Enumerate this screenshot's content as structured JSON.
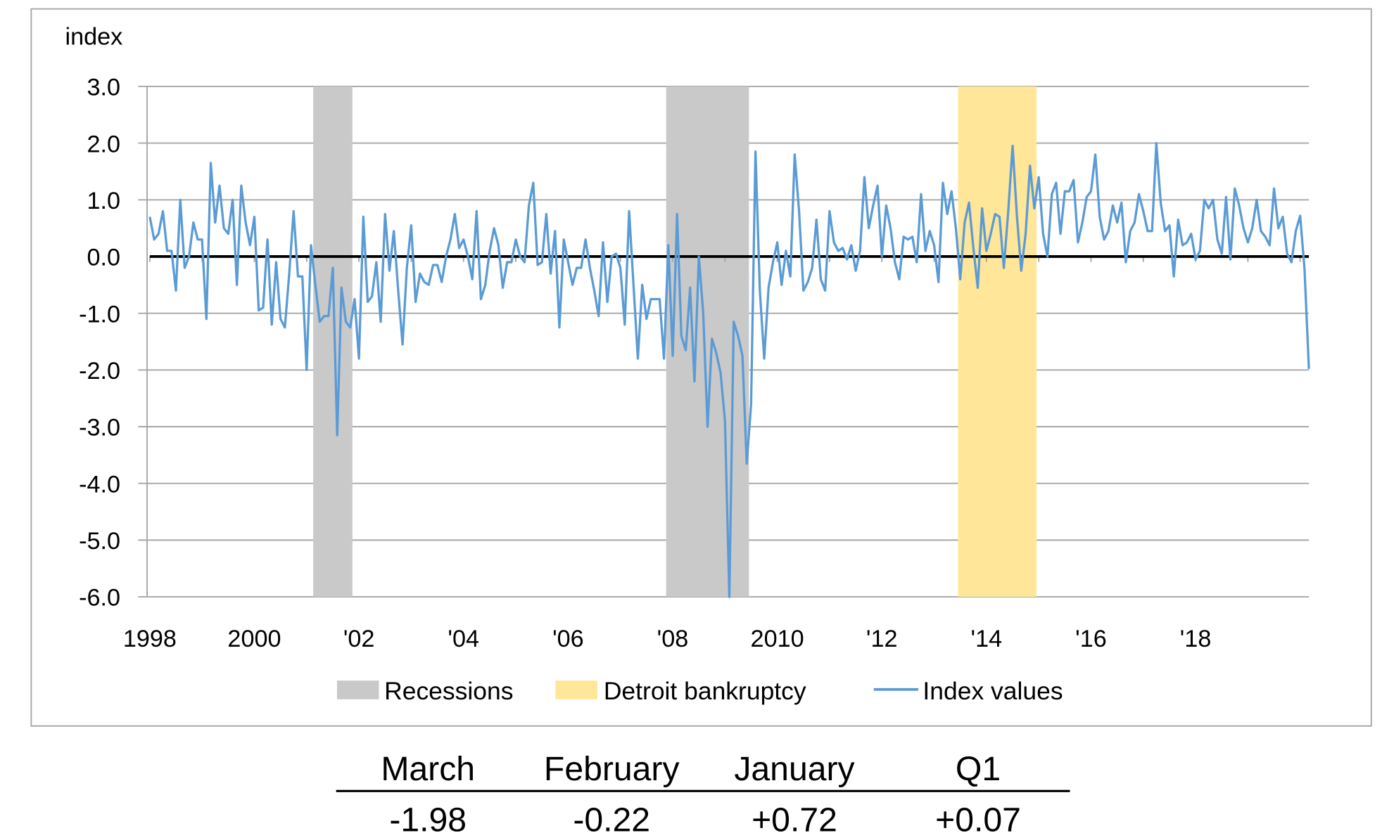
{
  "chart_data": {
    "type": "line",
    "ylabel": "index",
    "ylim": [
      -6.0,
      3.0
    ],
    "yticks": [
      "3.0",
      "2.0",
      "1.0",
      "0.0",
      "-1.0",
      "-2.0",
      "-3.0",
      "-4.0",
      "-5.0",
      "-6.0"
    ],
    "ytick_values": [
      3,
      2,
      1,
      0,
      -1,
      -2,
      -3,
      -4,
      -5,
      -6
    ],
    "xlim": [
      "1998-01",
      "2020-03"
    ],
    "xticks": [
      {
        "label": "1998",
        "year": 1998
      },
      {
        "label": "2000",
        "year": 2000
      },
      {
        "label": "'02",
        "year": 2002
      },
      {
        "label": "'04",
        "year": 2004
      },
      {
        "label": "'06",
        "year": 2006
      },
      {
        "label": "'08",
        "year": 2008
      },
      {
        "label": "2010",
        "year": 2010
      },
      {
        "label": "'12",
        "year": 2012
      },
      {
        "label": "'14",
        "year": 2014
      },
      {
        "label": "'16",
        "year": 2016
      },
      {
        "label": "'18",
        "year": 2018
      }
    ],
    "grid": true,
    "legend_position": "bottom",
    "colors": {
      "recession": "#c9c9c9",
      "bankruptcy": "#ffe699",
      "line": "#5b9bd5",
      "zero_line": "#000000",
      "grid": "#a6a6a6"
    },
    "shaded_periods": [
      {
        "series": "Recessions",
        "start": "2001-03",
        "end": "2001-11"
      },
      {
        "series": "Recessions",
        "start": "2007-12",
        "end": "2009-06"
      },
      {
        "series": "Detroit bankruptcy",
        "start": "2013-07",
        "end": "2014-12"
      }
    ],
    "legend": [
      "Recessions",
      "Detroit bankruptcy",
      "Index values"
    ],
    "series": [
      {
        "name": "Index values",
        "start": "1998-01",
        "frequency": "monthly",
        "values": [
          0.7,
          0.3,
          0.4,
          0.8,
          0.1,
          0.1,
          -0.6,
          1.0,
          -0.2,
          0.0,
          0.6,
          0.3,
          0.3,
          -1.1,
          1.65,
          0.6,
          1.25,
          0.5,
          0.4,
          1.0,
          -0.5,
          1.25,
          0.6,
          0.2,
          0.7,
          -0.95,
          -0.9,
          0.3,
          -1.2,
          -0.1,
          -1.1,
          -1.25,
          -0.3,
          0.8,
          -0.35,
          -0.35,
          -2.0,
          0.2,
          -0.5,
          -1.15,
          -1.05,
          -1.05,
          -0.2,
          -3.15,
          -0.55,
          -1.15,
          -1.25,
          -0.75,
          -1.8,
          0.7,
          -0.8,
          -0.7,
          -0.1,
          -1.15,
          0.75,
          -0.25,
          0.45,
          -0.6,
          -1.55,
          -0.2,
          0.55,
          -0.8,
          -0.3,
          -0.45,
          -0.5,
          -0.15,
          -0.15,
          -0.45,
          0.0,
          0.3,
          0.75,
          0.15,
          0.3,
          0.0,
          -0.4,
          0.8,
          -0.75,
          -0.5,
          0.1,
          0.5,
          0.2,
          -0.55,
          -0.1,
          -0.1,
          0.3,
          0.0,
          -0.1,
          0.9,
          1.3,
          -0.15,
          -0.1,
          0.75,
          -0.3,
          0.45,
          -1.25,
          0.3,
          -0.1,
          -0.5,
          -0.2,
          -0.2,
          0.3,
          -0.2,
          -0.6,
          -1.05,
          0.25,
          -0.8,
          0.0,
          0.05,
          -0.2,
          -1.2,
          0.8,
          -0.5,
          -1.8,
          -0.5,
          -1.1,
          -0.75,
          -0.75,
          -0.75,
          -1.8,
          0.2,
          -1.75,
          0.75,
          -1.4,
          -1.65,
          -0.55,
          -2.2,
          0.0,
          -1.0,
          -3.0,
          -1.45,
          -1.7,
          -2.05,
          -2.9,
          -6.0,
          -1.15,
          -1.4,
          -1.75,
          -3.65,
          -2.6,
          1.85,
          -0.6,
          -1.8,
          -0.55,
          -0.1,
          0.25,
          -0.5,
          0.1,
          -0.35,
          1.8,
          0.8,
          -0.6,
          -0.45,
          -0.2,
          0.65,
          -0.4,
          -0.6,
          0.8,
          0.25,
          0.1,
          0.15,
          -0.05,
          0.2,
          -0.25,
          0.1,
          1.4,
          0.5,
          0.9,
          1.25,
          0.0,
          0.9,
          0.5,
          -0.1,
          -0.4,
          0.35,
          0.3,
          0.35,
          -0.1,
          1.1,
          0.1,
          0.45,
          0.2,
          -0.45,
          1.3,
          0.75,
          1.15,
          0.5,
          -0.4,
          0.6,
          0.95,
          0.15,
          -0.55,
          0.85,
          0.1,
          0.4,
          0.75,
          0.7,
          -0.2,
          0.8,
          1.95,
          0.7,
          -0.25,
          0.4,
          1.6,
          0.85,
          1.4,
          0.4,
          0.0,
          1.1,
          1.3,
          0.4,
          1.15,
          1.15,
          1.35,
          0.25,
          0.6,
          1.05,
          1.15,
          1.8,
          0.7,
          0.3,
          0.45,
          0.9,
          0.6,
          0.95,
          -0.1,
          0.45,
          0.6,
          1.1,
          0.8,
          0.45,
          0.45,
          2.0,
          0.95,
          0.45,
          0.55,
          -0.35,
          0.65,
          0.2,
          0.25,
          0.4,
          -0.05,
          0.1,
          1.0,
          0.85,
          1.0,
          0.3,
          0.05,
          1.05,
          -0.05,
          1.2,
          0.9,
          0.5,
          0.25,
          0.5,
          1.0,
          0.45,
          0.35,
          0.2,
          1.2,
          0.5,
          0.7,
          0.05,
          -0.1,
          0.45,
          0.72,
          -0.22,
          -1.98
        ]
      }
    ]
  },
  "summary_table": {
    "headers": [
      "March",
      "February",
      "January",
      "Q1"
    ],
    "values": [
      "-1.98",
      "-0.22",
      "+0.72",
      "+0.07"
    ]
  }
}
